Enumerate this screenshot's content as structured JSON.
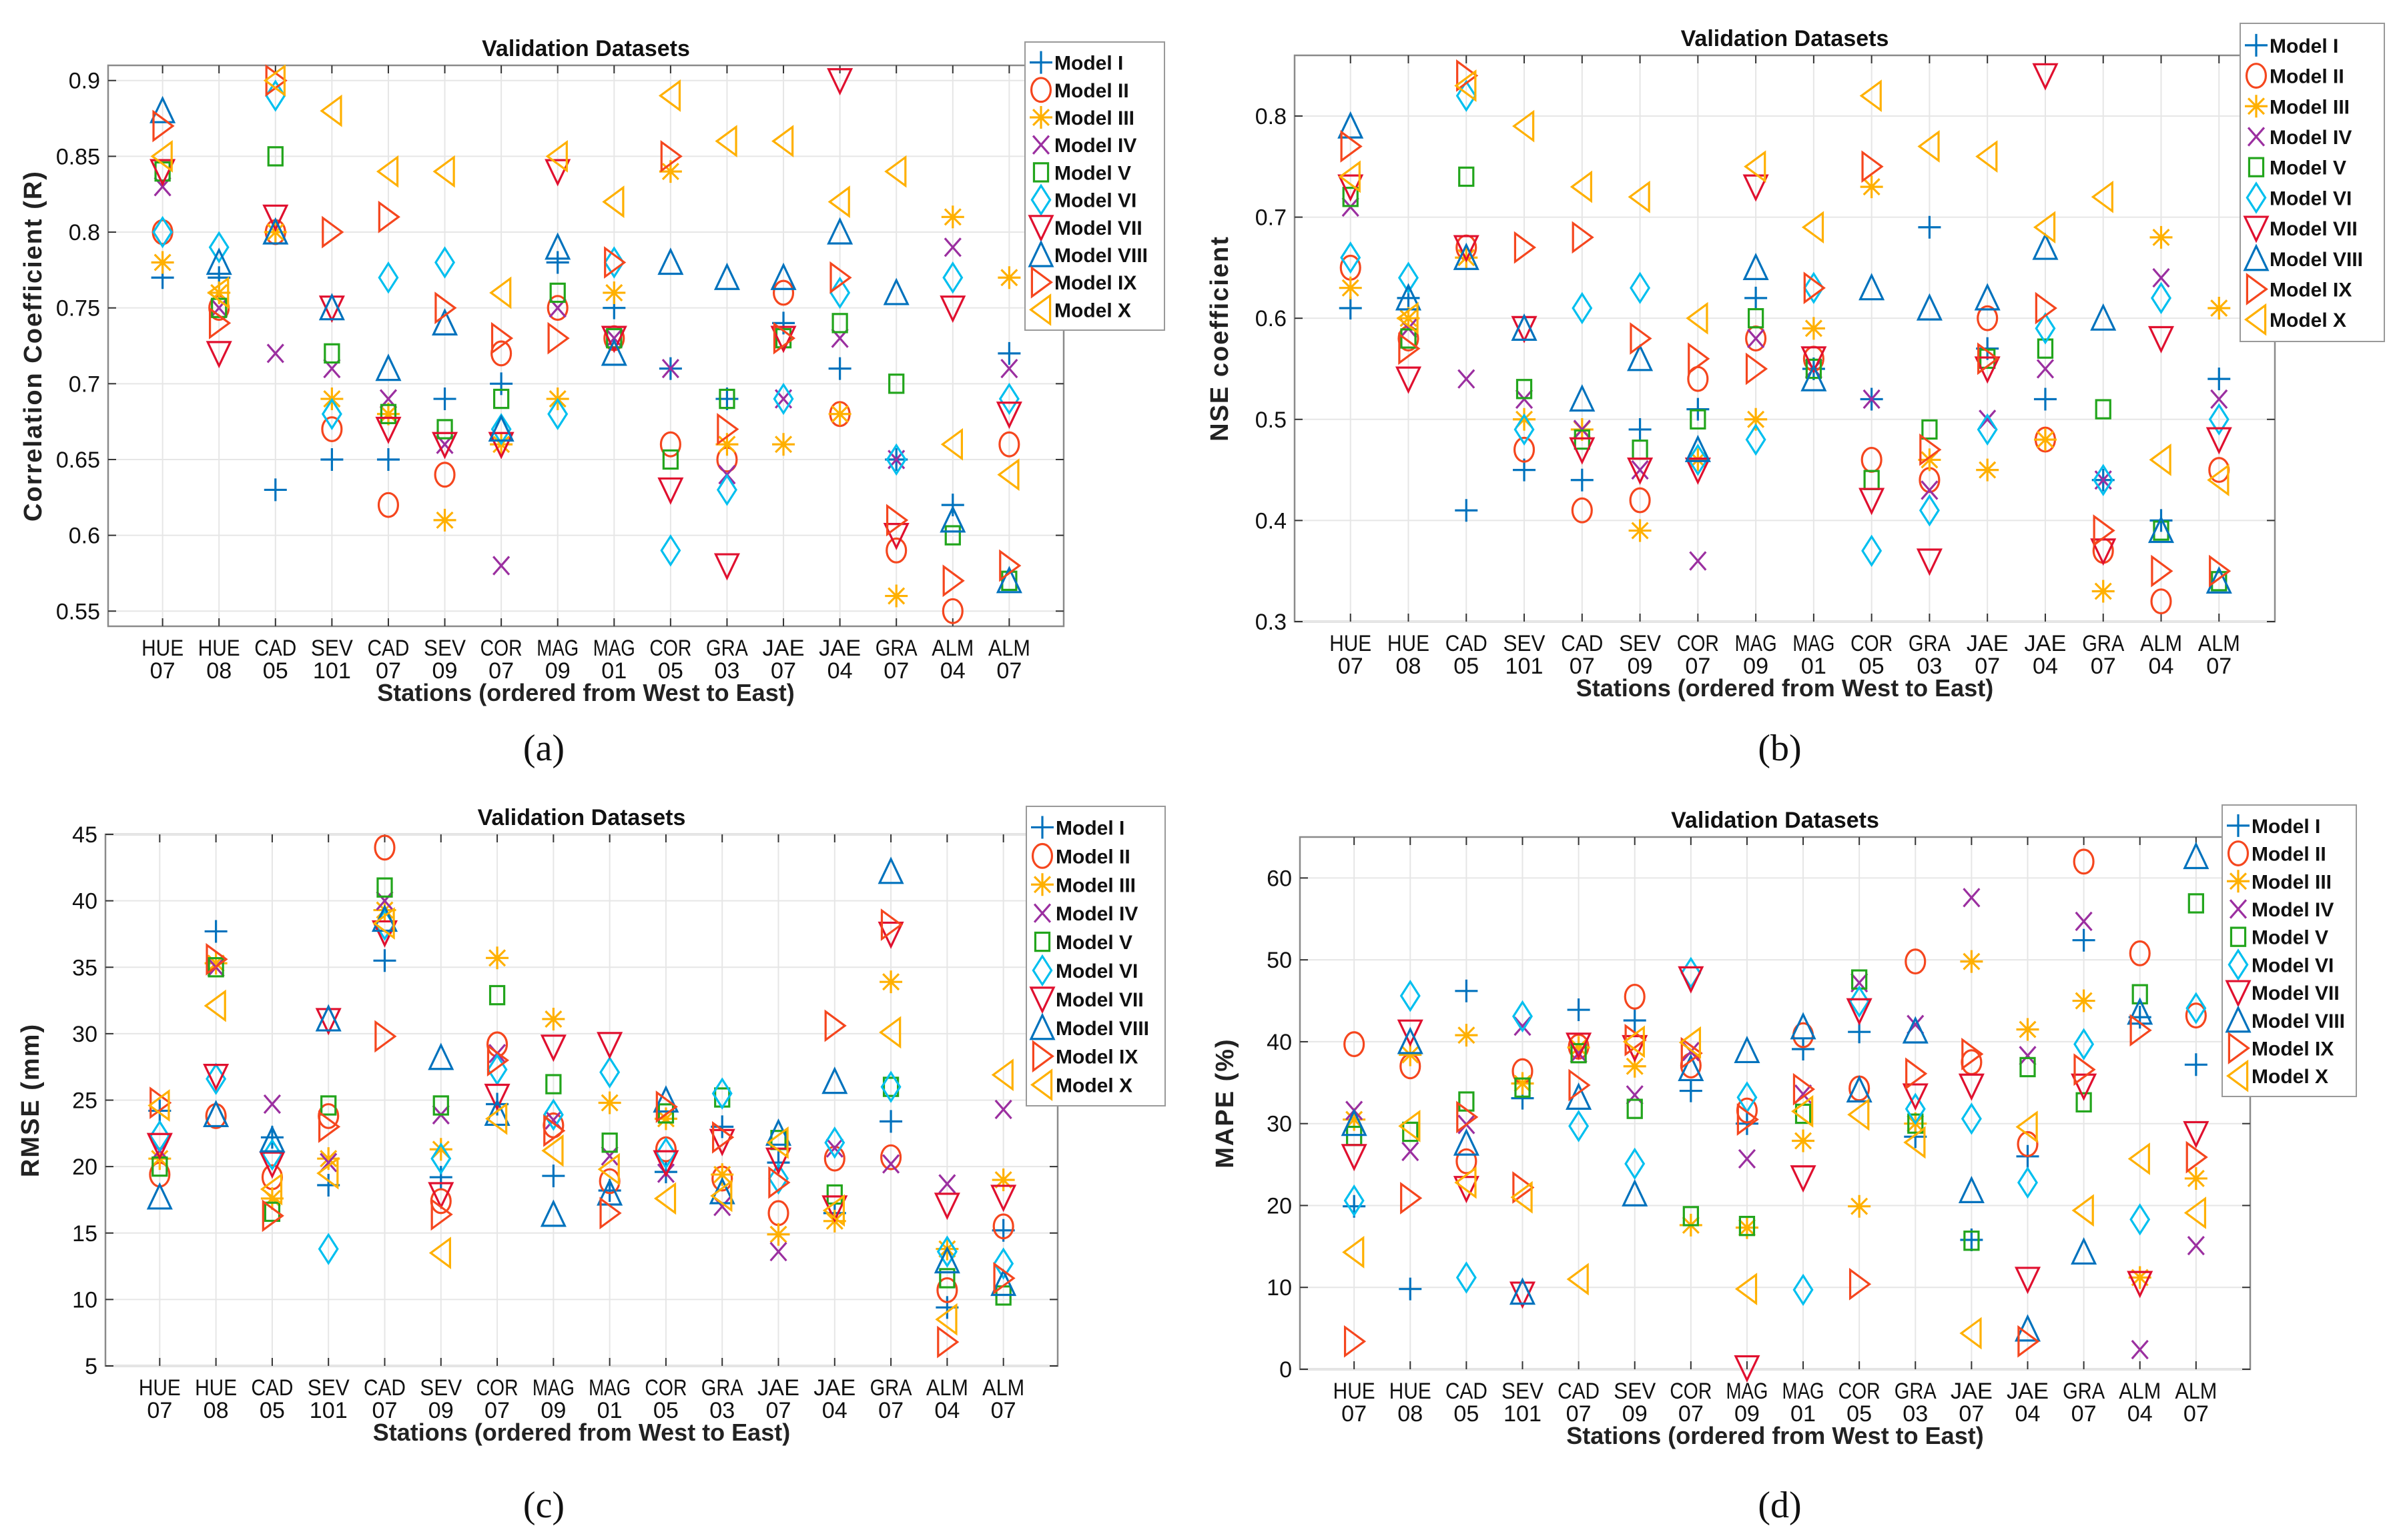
{
  "models": [
    "Model I",
    "Model II",
    "Model III",
    "Model IV",
    "Model V",
    "Model VI",
    "Model VII",
    "Model VIII",
    "Model IX",
    "Model X"
  ],
  "markers": [
    "plus",
    "circle",
    "asterisk",
    "cross",
    "square",
    "diamond",
    "triangle-down",
    "triangle-up",
    "triangle-right",
    "triangle-left"
  ],
  "colors": [
    "#0072BD",
    "#F5461E",
    "#FFB000",
    "#9B2FA0",
    "#22A51C",
    "#00BFEF",
    "#E0102F",
    "#0072BD",
    "#F5461E",
    "#FFB000"
  ],
  "stations": [
    [
      "HUE",
      "07"
    ],
    [
      "HUE",
      "08"
    ],
    [
      "CAD",
      "05"
    ],
    [
      "SEV",
      "101"
    ],
    [
      "CAD",
      "07"
    ],
    [
      "SEV",
      "09"
    ],
    [
      "COR",
      "07"
    ],
    [
      "MAG",
      "09"
    ],
    [
      "MAG",
      "01"
    ],
    [
      "COR",
      "05"
    ],
    [
      "GRA",
      "03"
    ],
    [
      "JAE",
      "07"
    ],
    [
      "JAE",
      "04"
    ],
    [
      "GRA",
      "07"
    ],
    [
      "ALM",
      "04"
    ],
    [
      "ALM",
      "07"
    ]
  ],
  "chart_data": [
    {
      "type": "scatter",
      "caption": "(a)",
      "title": "Validation Datasets",
      "xlabel": "Stations (ordered from West to East)",
      "ylabel": "Correlation Coefficient (R)",
      "ylim": [
        0.54,
        0.91
      ],
      "yticks": [
        0.55,
        0.6,
        0.65,
        0.7,
        0.75,
        0.8,
        0.85,
        0.9
      ],
      "grid": true,
      "legend": "top-right",
      "series": [
        {
          "name": "Model I",
          "values": [
            0.77,
            0.77,
            0.63,
            0.65,
            0.65,
            0.69,
            0.7,
            0.78,
            0.75,
            0.71,
            0.69,
            0.74,
            0.71,
            0.65,
            0.62,
            0.72
          ]
        },
        {
          "name": "Model II",
          "values": [
            0.8,
            0.75,
            0.8,
            0.67,
            0.62,
            0.64,
            0.72,
            0.75,
            0.73,
            0.66,
            0.65,
            0.76,
            0.68,
            0.59,
            0.55,
            0.66
          ]
        },
        {
          "name": "Model III",
          "values": [
            0.78,
            0.76,
            0.8,
            0.69,
            0.68,
            0.61,
            0.66,
            0.69,
            0.76,
            0.84,
            0.66,
            0.66,
            0.68,
            0.56,
            0.81,
            0.77
          ]
        },
        {
          "name": "Model IV",
          "values": [
            0.83,
            0.75,
            0.72,
            0.71,
            0.69,
            0.66,
            0.58,
            0.75,
            0.73,
            0.71,
            0.64,
            0.69,
            0.73,
            0.65,
            0.79,
            0.71
          ]
        },
        {
          "name": "Model V",
          "values": [
            0.84,
            0.75,
            0.85,
            0.72,
            0.68,
            0.67,
            0.69,
            0.76,
            0.73,
            0.65,
            0.69,
            0.73,
            0.74,
            0.7,
            0.6,
            0.57
          ]
        },
        {
          "name": "Model VI",
          "values": [
            0.8,
            0.79,
            0.89,
            0.68,
            0.77,
            0.78,
            0.67,
            0.68,
            0.78,
            0.59,
            0.63,
            0.69,
            0.76,
            0.65,
            0.77,
            0.69
          ]
        },
        {
          "name": "Model VII",
          "values": [
            0.84,
            0.72,
            0.81,
            0.75,
            0.67,
            0.66,
            0.66,
            0.84,
            0.73,
            0.63,
            0.58,
            0.73,
            0.9,
            0.6,
            0.75,
            0.68
          ]
        },
        {
          "name": "Model VIII",
          "values": [
            0.88,
            0.78,
            0.8,
            0.75,
            0.71,
            0.74,
            0.67,
            0.79,
            0.72,
            0.78,
            0.77,
            0.77,
            0.8,
            0.76,
            0.61,
            0.57
          ]
        },
        {
          "name": "Model IX",
          "values": [
            0.87,
            0.74,
            0.9,
            0.8,
            0.81,
            0.75,
            0.73,
            0.73,
            0.78,
            0.85,
            0.67,
            0.73,
            0.77,
            0.61,
            0.57,
            0.58
          ]
        },
        {
          "name": "Model X",
          "values": [
            0.85,
            0.76,
            0.9,
            0.88,
            0.84,
            0.84,
            0.76,
            0.85,
            0.82,
            0.89,
            0.86,
            0.86,
            0.82,
            0.84,
            0.66,
            0.64
          ]
        }
      ]
    },
    {
      "type": "scatter",
      "caption": "(b)",
      "title": "Validation Datasets",
      "xlabel": "Stations (ordered from West to East)",
      "ylabel": "NSE coefficient",
      "ylim": [
        0.3,
        0.86
      ],
      "yticks": [
        0.3,
        0.4,
        0.5,
        0.6,
        0.7,
        0.8
      ],
      "grid": true,
      "legend": "top-right",
      "series": [
        {
          "name": "Model I",
          "values": [
            0.61,
            0.62,
            0.41,
            0.45,
            0.44,
            0.49,
            0.51,
            0.62,
            0.55,
            0.52,
            0.69,
            0.57,
            0.52,
            0.44,
            0.4,
            0.54
          ]
        },
        {
          "name": "Model II",
          "values": [
            0.65,
            0.58,
            0.67,
            0.47,
            0.41,
            0.42,
            0.54,
            0.58,
            0.56,
            0.46,
            0.44,
            0.6,
            0.48,
            0.37,
            0.32,
            0.45
          ]
        },
        {
          "name": "Model III",
          "values": [
            0.63,
            0.6,
            0.66,
            0.5,
            0.49,
            0.39,
            0.46,
            0.5,
            0.59,
            0.73,
            0.46,
            0.45,
            0.48,
            0.33,
            0.68,
            0.61
          ]
        },
        {
          "name": "Model IV",
          "values": [
            0.71,
            0.59,
            0.54,
            0.52,
            0.49,
            0.45,
            0.36,
            0.58,
            0.55,
            0.52,
            0.43,
            0.5,
            0.55,
            0.44,
            0.64,
            0.52
          ]
        },
        {
          "name": "Model V",
          "values": [
            0.72,
            0.58,
            0.74,
            0.53,
            0.48,
            0.47,
            0.5,
            0.6,
            0.55,
            0.44,
            0.49,
            0.56,
            0.57,
            0.51,
            0.39,
            0.34
          ]
        },
        {
          "name": "Model VI",
          "values": [
            0.66,
            0.64,
            0.82,
            0.49,
            0.61,
            0.63,
            0.46,
            0.48,
            0.63,
            0.37,
            0.41,
            0.49,
            0.59,
            0.44,
            0.62,
            0.5
          ]
        },
        {
          "name": "Model VII",
          "values": [
            0.73,
            0.54,
            0.67,
            0.59,
            0.47,
            0.45,
            0.45,
            0.73,
            0.56,
            0.42,
            0.36,
            0.55,
            0.84,
            0.37,
            0.58,
            0.48
          ]
        },
        {
          "name": "Model VIII",
          "values": [
            0.79,
            0.62,
            0.66,
            0.59,
            0.52,
            0.56,
            0.47,
            0.65,
            0.54,
            0.63,
            0.61,
            0.62,
            0.67,
            0.6,
            0.39,
            0.34
          ]
        },
        {
          "name": "Model IX",
          "values": [
            0.77,
            0.57,
            0.84,
            0.67,
            0.68,
            0.58,
            0.56,
            0.55,
            0.63,
            0.75,
            0.47,
            0.56,
            0.61,
            0.39,
            0.35,
            0.35
          ]
        },
        {
          "name": "Model X",
          "values": [
            0.74,
            0.6,
            0.83,
            0.79,
            0.73,
            0.72,
            0.6,
            0.75,
            0.69,
            0.82,
            0.77,
            0.76,
            0.69,
            0.72,
            0.46,
            0.44
          ]
        }
      ]
    },
    {
      "type": "scatter",
      "caption": "(c)",
      "title": "Validation Datasets",
      "xlabel": "Stations (ordered from West to East)",
      "ylabel": "RMSE (mm)",
      "ylim": [
        5,
        45
      ],
      "yticks": [
        5,
        10,
        15,
        20,
        25,
        30,
        35,
        40,
        45
      ],
      "grid": true,
      "legend": "top-right",
      "series": [
        {
          "name": "Model I",
          "values": [
            24.2,
            37.7,
            22.2,
            18.6,
            35.5,
            19.2,
            24.7,
            19.3,
            18.2,
            19.6,
            23.0,
            20.3,
            16.5,
            23.4,
            9.4,
            15.2
          ]
        },
        {
          "name": "Model II",
          "values": [
            19.4,
            23.8,
            19.2,
            23.8,
            44.0,
            17.4,
            29.2,
            23.1,
            18.9,
            21.3,
            19.1,
            16.5,
            20.6,
            20.7,
            10.7,
            15.5
          ]
        },
        {
          "name": "Model III",
          "values": [
            20.6,
            35.3,
            17.6,
            20.6,
            39.3,
            21.3,
            35.7,
            31.1,
            24.8,
            23.6,
            19.4,
            14.9,
            15.9,
            33.9,
            13.8,
            19.0
          ]
        },
        {
          "name": "Model IV",
          "values": [
            21.2,
            35.0,
            24.7,
            20.3,
            40.0,
            23.9,
            28.5,
            23.5,
            20.8,
            19.5,
            17.0,
            13.6,
            21.4,
            20.2,
            18.7,
            24.3
          ]
        },
        {
          "name": "Model V",
          "values": [
            20.0,
            35.0,
            16.6,
            24.6,
            41.0,
            24.6,
            32.9,
            26.2,
            21.8,
            24.0,
            25.2,
            22.0,
            17.9,
            26.0,
            11.6,
            10.3
          ]
        },
        {
          "name": "Model VI",
          "values": [
            22.3,
            26.6,
            20.9,
            13.8,
            38.2,
            20.6,
            27.3,
            23.9,
            27.1,
            21.0,
            25.5,
            19.1,
            21.8,
            26.0,
            13.6,
            12.7
          ]
        },
        {
          "name": "Model VII",
          "values": [
            21.6,
            26.8,
            20.2,
            31.0,
            37.6,
            17.9,
            25.3,
            29.0,
            29.2,
            20.3,
            21.9,
            20.5,
            16.9,
            37.5,
            17.1,
            17.7
          ]
        },
        {
          "name": "Model VIII",
          "values": [
            17.7,
            23.9,
            22.0,
            31.1,
            38.6,
            28.2,
            24.0,
            16.4,
            18.0,
            25.0,
            18.1,
            22.5,
            26.4,
            42.2,
            12.9,
            11.2
          ]
        },
        {
          "name": "Model IX",
          "values": [
            24.8,
            35.6,
            16.3,
            23.0,
            29.8,
            16.4,
            28.0,
            22.7,
            16.5,
            24.5,
            22.2,
            18.8,
            30.6,
            38.2,
            6.8,
            11.6
          ]
        },
        {
          "name": "Model X",
          "values": [
            24.6,
            32.1,
            18.3,
            19.5,
            38.3,
            13.5,
            23.6,
            21.2,
            19.8,
            17.6,
            17.8,
            21.8,
            16.7,
            30.1,
            8.5,
            26.9
          ]
        }
      ]
    },
    {
      "type": "scatter",
      "caption": "(d)",
      "title": "Validation Datasets",
      "xlabel": "Stations (ordered from West to East)",
      "ylabel": "MAPE (%)",
      "ylim": [
        0,
        65
      ],
      "yticks": [
        0,
        10,
        20,
        30,
        40,
        50,
        60
      ],
      "grid": true,
      "legend": "top-right",
      "series": [
        {
          "name": "Model I",
          "values": [
            19.9,
            9.8,
            46.2,
            33.1,
            43.9,
            42.6,
            34.0,
            30.0,
            39.1,
            41.2,
            28.4,
            15.8,
            26.0,
            52.4,
            43.0,
            37.2
          ]
        },
        {
          "name": "Model II",
          "values": [
            39.7,
            37.0,
            25.4,
            36.4,
            39.4,
            45.5,
            37.1,
            31.6,
            40.8,
            34.3,
            49.8,
            37.5,
            27.5,
            62.0,
            50.8,
            43.2
          ]
        },
        {
          "name": "Model III",
          "values": [
            30.5,
            38.4,
            40.8,
            34.9,
            39.3,
            37.0,
            17.6,
            17.3,
            27.9,
            19.9,
            30.0,
            49.8,
            41.5,
            45.0,
            11.2,
            23.3
          ]
        },
        {
          "name": "Model IV",
          "values": [
            31.6,
            26.6,
            29.9,
            41.9,
            38.6,
            33.5,
            38.8,
            25.7,
            33.6,
            47.2,
            42.1,
            57.6,
            38.3,
            54.7,
            2.4,
            15.1
          ]
        },
        {
          "name": "Model V",
          "values": [
            28.5,
            29.0,
            32.7,
            34.4,
            38.6,
            31.8,
            18.7,
            17.5,
            31.2,
            47.6,
            30.0,
            15.7,
            36.9,
            32.6,
            45.8,
            56.9
          ]
        },
        {
          "name": "Model VI",
          "values": [
            20.6,
            45.6,
            11.2,
            43.1,
            29.7,
            25.1,
            48.4,
            33.2,
            9.7,
            44.9,
            31.8,
            30.6,
            22.8,
            39.7,
            18.3,
            44.1
          ]
        },
        {
          "name": "Model VII",
          "values": [
            26.0,
            41.2,
            22.1,
            9.2,
            39.6,
            39.3,
            47.7,
            0.2,
            23.4,
            43.8,
            33.4,
            34.6,
            11.0,
            34.6,
            10.5,
            28.8
          ]
        },
        {
          "name": "Model VIII",
          "values": [
            30.0,
            40.0,
            27.6,
            9.4,
            33.2,
            21.4,
            36.7,
            38.9,
            41.8,
            34.1,
            41.3,
            21.8,
            4.9,
            14.3,
            43.6,
            62.6
          ]
        },
        {
          "name": "Model IX",
          "values": [
            3.4,
            20.9,
            30.8,
            22.2,
            34.7,
            40.2,
            38.6,
            30.5,
            34.2,
            10.4,
            36.1,
            38.5,
            3.4,
            36.6,
            41.4,
            25.9
          ]
        },
        {
          "name": "Model X",
          "values": [
            14.3,
            29.7,
            22.8,
            21.0,
            11.0,
            40.0,
            39.9,
            9.8,
            31.5,
            31.1,
            27.7,
            4.4,
            29.6,
            19.4,
            25.7,
            19.1
          ]
        }
      ]
    }
  ]
}
